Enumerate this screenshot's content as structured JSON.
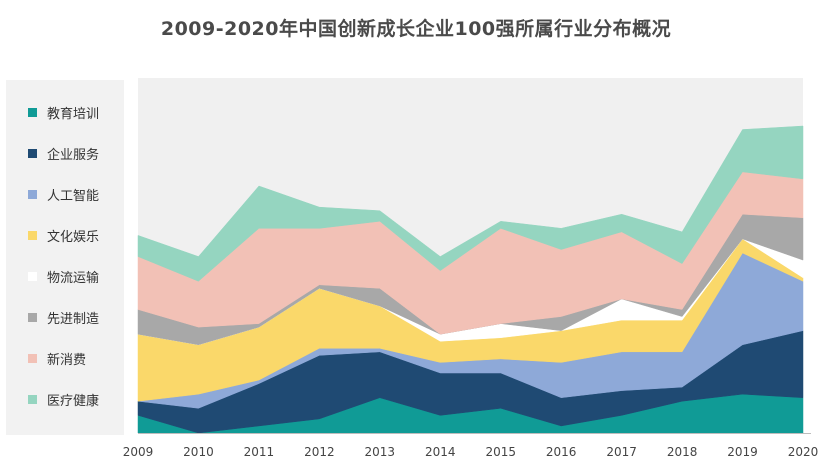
{
  "chart_data": {
    "type": "area",
    "title": "2009-2020年中国创新成长企业100强所属行业分布概况",
    "xlabel": "",
    "ylabel": "",
    "x": [
      "2009",
      "2010",
      "2011",
      "2012",
      "2013",
      "2014",
      "2015",
      "2016",
      "2017",
      "2018",
      "2019",
      "2020"
    ],
    "stacked": true,
    "grid": false,
    "legend_position": "left",
    "series": [
      {
        "name": "教育培训",
        "color": "#109b96",
        "values": [
          5,
          0,
          2,
          4,
          10,
          5,
          7,
          2,
          5,
          9,
          11,
          10
        ]
      },
      {
        "name": "企业服务",
        "color": "#1f4a73",
        "values": [
          4,
          7,
          12,
          18,
          13,
          12,
          10,
          8,
          7,
          4,
          14,
          19
        ]
      },
      {
        "name": "人工智能",
        "color": "#8ea9d8",
        "values": [
          0,
          4,
          1,
          2,
          1,
          3,
          4,
          10,
          11,
          10,
          26,
          14
        ]
      },
      {
        "name": "文化娱乐",
        "color": "#fad86a",
        "values": [
          19,
          14,
          15,
          17,
          12,
          6,
          6,
          9,
          9,
          9,
          4,
          1
        ]
      },
      {
        "name": "物流运输",
        "color": "#ffffff",
        "values": [
          0,
          0,
          0,
          0,
          0,
          2,
          4,
          0,
          6,
          1,
          0,
          5
        ]
      },
      {
        "name": "先进制造",
        "color": "#a8a8a8",
        "values": [
          7,
          5,
          1,
          1,
          5,
          0,
          0,
          4,
          0,
          2,
          7,
          12
        ]
      },
      {
        "name": "新消费",
        "color": "#f2c1b6",
        "values": [
          15,
          13,
          27,
          16,
          19,
          18,
          27,
          19,
          19,
          13,
          12,
          11
        ]
      },
      {
        "name": "医疗健康",
        "color": "#95d5c0",
        "values": [
          6,
          7,
          12,
          6,
          3,
          4,
          2,
          6,
          5,
          9,
          12,
          15
        ]
      }
    ]
  }
}
